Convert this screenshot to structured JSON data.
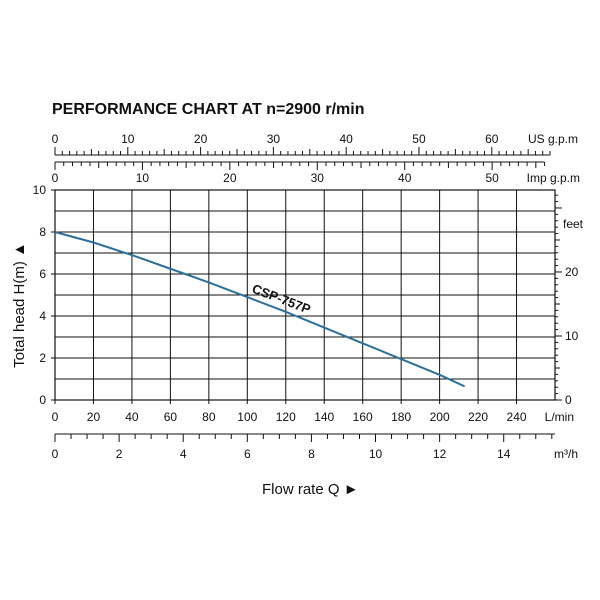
{
  "chart_data": {
    "type": "line",
    "title": "PERFORMANCE CHART AT n=2900 r/min",
    "ylabel": "Total head H(m)",
    "xlabel": "Flow rate Q",
    "x_unit": "L/min",
    "y_unit": "m",
    "xlim": [
      0,
      260
    ],
    "ylim": [
      0,
      10
    ],
    "grid": true,
    "x_ticks": [
      0,
      20,
      40,
      60,
      80,
      100,
      120,
      140,
      160,
      180,
      200,
      220,
      240
    ],
    "y_ticks": [
      0,
      2,
      4,
      6,
      8,
      10
    ],
    "series": [
      {
        "name": "CSP-757P",
        "color": "#2b6f9a",
        "x": [
          0,
          20,
          40,
          60,
          80,
          100,
          120,
          140,
          160,
          180,
          200,
          213
        ],
        "y": [
          8.0,
          7.5,
          6.9,
          6.25,
          5.6,
          4.9,
          4.2,
          3.45,
          2.7,
          1.95,
          1.2,
          0.65
        ]
      }
    ],
    "secondary_axes": {
      "us_gpm": {
        "label": "US g.p.m",
        "ticks": [
          0,
          10,
          20,
          30,
          40,
          50,
          60
        ]
      },
      "imp_gpm": {
        "label": "Imp g.p.m",
        "ticks": [
          0,
          10,
          20,
          30,
          40,
          50
        ]
      },
      "feet": {
        "label": "feet",
        "ticks": [
          0,
          10,
          20
        ]
      },
      "m3h": {
        "label": "m³/h",
        "ticks": [
          0,
          2,
          4,
          6,
          8,
          10,
          12,
          14
        ]
      }
    }
  }
}
